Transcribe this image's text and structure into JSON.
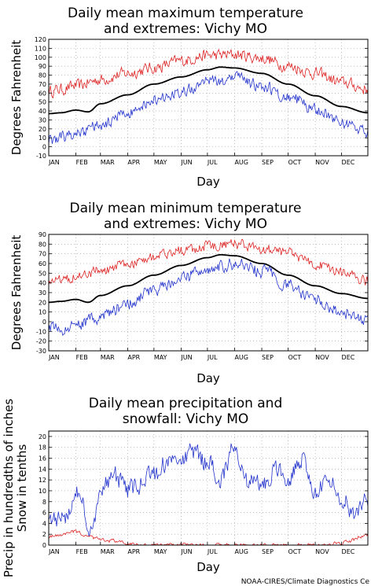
{
  "credit": "NOAA-CIRES/Climate Diagnostics Ce",
  "colors": {
    "record_high": "#dd2222",
    "record_low": "#2233cc",
    "mean": "#000000",
    "grid": "#999999"
  },
  "chart_data": [
    {
      "type": "line",
      "title_lines": [
        "Daily mean maximum temperature",
        "and extremes: Vichy MO"
      ],
      "xlabel": "Day",
      "ylabel_lines": [
        "Degrees Fahrenheit"
      ],
      "months": [
        "JAN",
        "FEB",
        "MAR",
        "APR",
        "MAY",
        "JUN",
        "JUL",
        "AUG",
        "SEP",
        "OCT",
        "NOV",
        "DEC"
      ],
      "ylim": [
        -10,
        120
      ],
      "yticks": [
        -10,
        0,
        10,
        20,
        30,
        40,
        50,
        60,
        70,
        80,
        90,
        100,
        110,
        120
      ],
      "grid": true,
      "series": [
        {
          "key": "record_high",
          "color": "#dd2222",
          "noise": 6,
          "x": [
            1,
            15,
            32,
            60,
            91,
            121,
            152,
            182,
            213,
            244,
            274,
            305,
            335,
            365
          ],
          "y": [
            62,
            64,
            68,
            75,
            82,
            88,
            96,
            102,
            103,
            99,
            90,
            82,
            72,
            64
          ]
        },
        {
          "key": "mean",
          "color": "#000000",
          "noise": 0,
          "x": [
            1,
            15,
            32,
            46,
            60,
            91,
            121,
            152,
            182,
            197,
            213,
            244,
            274,
            305,
            335,
            365
          ],
          "y": [
            37,
            38,
            41,
            39,
            48,
            58,
            70,
            78,
            86,
            89,
            88,
            82,
            70,
            57,
            45,
            38
          ]
        },
        {
          "key": "record_low",
          "color": "#2233cc",
          "noise": 6,
          "x": [
            1,
            15,
            32,
            60,
            91,
            121,
            152,
            182,
            213,
            244,
            274,
            305,
            335,
            365
          ],
          "y": [
            8,
            10,
            15,
            25,
            38,
            52,
            62,
            72,
            76,
            68,
            56,
            42,
            28,
            15
          ]
        }
      ]
    },
    {
      "type": "line",
      "title_lines": [
        "Daily mean minimum temperature",
        "and extremes: Vichy MO"
      ],
      "xlabel": "Day",
      "ylabel_lines": [
        "Degrees Fahrenheit"
      ],
      "months": [
        "JAN",
        "FEB",
        "MAR",
        "APR",
        "MAY",
        "JUN",
        "JUL",
        "AUG",
        "SEP",
        "OCT",
        "NOV",
        "DEC"
      ],
      "ylim": [
        -30,
        90
      ],
      "yticks": [
        -30,
        -20,
        -10,
        0,
        10,
        20,
        30,
        40,
        50,
        60,
        70,
        80,
        90
      ],
      "grid": true,
      "series": [
        {
          "key": "record_high",
          "color": "#dd2222",
          "noise": 5,
          "x": [
            1,
            15,
            32,
            60,
            91,
            121,
            152,
            182,
            213,
            244,
            274,
            305,
            335,
            365
          ],
          "y": [
            42,
            44,
            47,
            52,
            60,
            67,
            73,
            78,
            80,
            76,
            70,
            60,
            50,
            42
          ]
        },
        {
          "key": "mean",
          "color": "#000000",
          "noise": 0,
          "x": [
            1,
            15,
            32,
            46,
            60,
            91,
            121,
            152,
            182,
            197,
            213,
            244,
            274,
            305,
            335,
            365
          ],
          "y": [
            20,
            21,
            23,
            20,
            27,
            37,
            48,
            58,
            66,
            69,
            68,
            60,
            48,
            37,
            29,
            24
          ]
        },
        {
          "key": "record_low",
          "color": "#2233cc",
          "noise": 6,
          "x": [
            1,
            15,
            32,
            60,
            91,
            121,
            152,
            182,
            213,
            244,
            274,
            305,
            335,
            365
          ],
          "y": [
            -5,
            -8,
            -5,
            5,
            18,
            32,
            45,
            55,
            60,
            52,
            38,
            22,
            10,
            0
          ]
        }
      ]
    },
    {
      "type": "line",
      "title_lines": [
        "Daily mean precipitation and",
        "snowfall: Vichy MO"
      ],
      "xlabel": "Day",
      "ylabel_lines": [
        "Precip in hundredths of inches",
        "Snow in tenths"
      ],
      "months": [
        "JAN",
        "FEB",
        "MAR",
        "APR",
        "MAY",
        "JUN",
        "JUL",
        "AUG",
        "SEP",
        "OCT",
        "NOV",
        "DEC"
      ],
      "ylim": [
        0,
        21
      ],
      "yticks": [
        0,
        2,
        4,
        6,
        8,
        10,
        12,
        14,
        16,
        18,
        20
      ],
      "grid": true,
      "series": [
        {
          "key": "precip",
          "color": "#2233cc",
          "noise": 1.6,
          "x": [
            1,
            10,
            20,
            32,
            40,
            46,
            55,
            60,
            75,
            91,
            105,
            121,
            135,
            152,
            165,
            182,
            197,
            213,
            225,
            244,
            260,
            274,
            290,
            305,
            320,
            335,
            350,
            365
          ],
          "y": [
            6,
            4.5,
            5,
            10,
            7,
            3,
            6,
            10,
            13,
            10,
            11,
            13,
            15,
            16,
            17,
            15,
            12,
            18,
            12,
            11,
            14,
            12,
            16,
            10,
            12,
            9,
            6,
            9
          ]
        },
        {
          "key": "snow",
          "color": "#dd2222",
          "noise": 0.3,
          "x": [
            1,
            15,
            32,
            46,
            60,
            75,
            91,
            100,
            310,
            330,
            345,
            355,
            365
          ],
          "y": [
            1.5,
            2,
            2.5,
            1.5,
            1,
            0.8,
            0.3,
            0,
            0,
            0.3,
            0.8,
            1.5,
            1.8
          ]
        }
      ]
    }
  ]
}
